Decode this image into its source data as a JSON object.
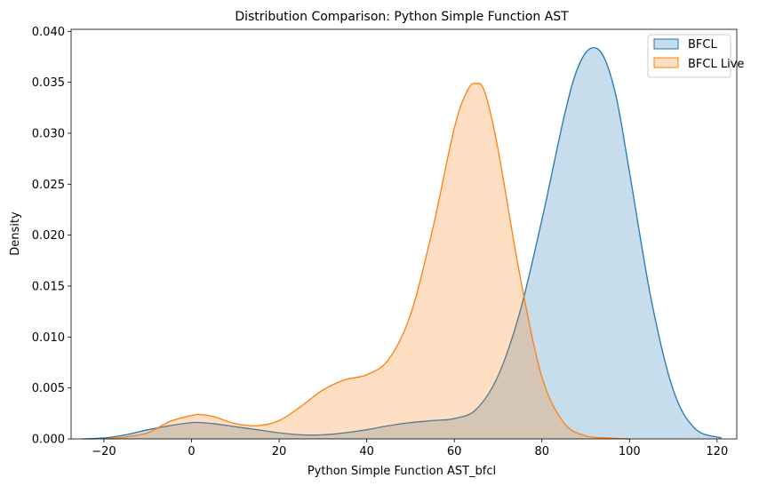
{
  "chart_data": {
    "type": "area",
    "title": "Distribution Comparison: Python Simple Function AST",
    "xlabel": "Python Simple Function AST_bfcl",
    "ylabel": "Density",
    "xlim": [
      -27.5,
      124.5
    ],
    "ylim": [
      0,
      0.0402
    ],
    "xticks": [
      -20,
      0,
      20,
      40,
      60,
      80,
      100,
      120
    ],
    "xtick_labels": [
      "−20",
      "0",
      "20",
      "40",
      "60",
      "80",
      "100",
      "120"
    ],
    "yticks": [
      0,
      0.005,
      0.01,
      0.015,
      0.02,
      0.025,
      0.03,
      0.035,
      0.04
    ],
    "ytick_labels": [
      "0.000",
      "0.005",
      "0.010",
      "0.015",
      "0.020",
      "0.025",
      "0.030",
      "0.035",
      "0.040"
    ],
    "legend_position": "top-right",
    "grid": false,
    "series": [
      {
        "name": "BFCL",
        "color": "#1f77b4",
        "x": [
          -25,
          -20,
          -15,
          -10,
          -5,
          0,
          2,
          5,
          10,
          15,
          20,
          25,
          30,
          35,
          40,
          45,
          50,
          55,
          60,
          65,
          70,
          75,
          80,
          85,
          88,
          91,
          94,
          97,
          100,
          105,
          110,
          115,
          121
        ],
        "y": [
          0.0,
          0.0001,
          0.0004,
          0.0009,
          0.0013,
          0.0016,
          0.0016,
          0.0015,
          0.0012,
          0.0009,
          0.0006,
          0.0004,
          0.0004,
          0.0006,
          0.0009,
          0.0013,
          0.0016,
          0.0018,
          0.002,
          0.0029,
          0.0062,
          0.0125,
          0.0215,
          0.0315,
          0.0362,
          0.0383,
          0.0376,
          0.0335,
          0.0262,
          0.0136,
          0.0048,
          0.001,
          0.0001
        ]
      },
      {
        "name": "BFCL Live",
        "color": "#ff7f0e",
        "x": [
          -20,
          -15,
          -10,
          -5,
          0,
          2,
          5,
          10,
          15,
          20,
          25,
          30,
          35,
          40,
          45,
          50,
          55,
          60,
          63,
          65,
          67,
          70,
          75,
          80,
          85,
          90,
          95,
          100
        ],
        "y": [
          0.0,
          0.0002,
          0.0006,
          0.0017,
          0.0023,
          0.0024,
          0.0022,
          0.0015,
          0.0013,
          0.0018,
          0.0032,
          0.0048,
          0.0058,
          0.0063,
          0.0078,
          0.0122,
          0.0205,
          0.0305,
          0.0342,
          0.0349,
          0.034,
          0.0284,
          0.016,
          0.0061,
          0.0016,
          0.0003,
          0.0001,
          0.0
        ]
      }
    ]
  }
}
